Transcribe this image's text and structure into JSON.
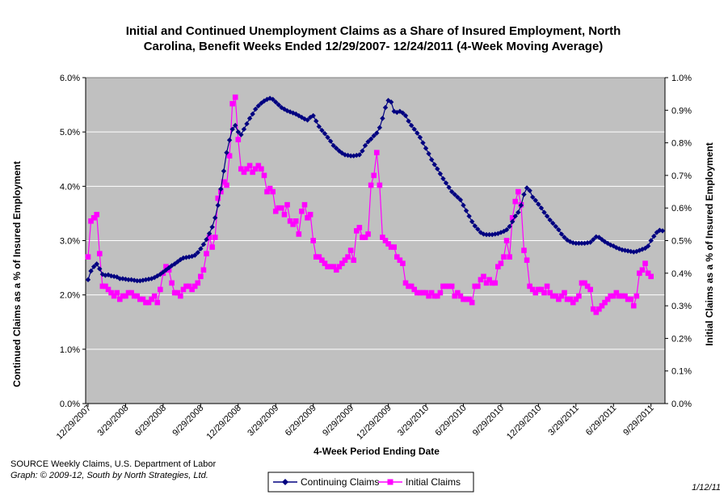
{
  "chart_data": {
    "type": "line",
    "title_line1": "Initial and Continued Unemployment Claims as a Share of Insured Employment, North",
    "title_line2": "Carolina, Benefit Weeks Ended 12/29/2007- 12/24/2011 (4-Week Moving Average)",
    "xlabel": "4-Week Period Ending Date",
    "ylabel_left": "Continued Claims as a % of Insured Employment",
    "ylabel_right": "Initial Claims as a % of Insured Employment",
    "ylim_left": [
      0,
      6.0
    ],
    "ylim_right": [
      0,
      1.0
    ],
    "y_ticks_left": [
      "0.0%",
      "1.0%",
      "2.0%",
      "3.0%",
      "4.0%",
      "5.0%",
      "6.0%"
    ],
    "y_ticks_right": [
      "0.0%",
      "0.1%",
      "0.2%",
      "0.3%",
      "0.4%",
      "0.5%",
      "0.6%",
      "0.7%",
      "0.8%",
      "0.9%",
      "1.0%"
    ],
    "x_tick_labels": [
      "12/29/2007",
      "3/29/2008",
      "6/29/2008",
      "9/29/2008",
      "12/29/2008",
      "3/29/2009",
      "6/29/2009",
      "9/29/2009",
      "12/29/2009",
      "3/29/2010",
      "6/29/2010",
      "9/29/2010",
      "12/29/2010",
      "3/29/2011",
      "6/29/2011",
      "9/29/2011"
    ],
    "grid": true,
    "legend_position": "bottom",
    "source_line": "SOURCE  Weekly Claims, U.S. Department of Labor",
    "credit_line": "Graph: © 2009-12, South by North Strategies, Ltd.",
    "date_stamp": "1/12/11",
    "colors": {
      "plot_bg": "#c0c0c0",
      "grid": "#ffffff",
      "continuing": "#000080",
      "initial": "#ff00ff"
    },
    "series": [
      {
        "name": "Continuing Claims",
        "axis": "left",
        "marker": "diamond",
        "values": [
          2.28,
          2.44,
          2.52,
          2.57,
          2.48,
          2.38,
          2.36,
          2.37,
          2.35,
          2.34,
          2.33,
          2.3,
          2.3,
          2.29,
          2.28,
          2.28,
          2.27,
          2.26,
          2.26,
          2.27,
          2.28,
          2.29,
          2.3,
          2.32,
          2.35,
          2.38,
          2.42,
          2.46,
          2.5,
          2.54,
          2.57,
          2.61,
          2.65,
          2.68,
          2.69,
          2.7,
          2.71,
          2.73,
          2.78,
          2.85,
          2.93,
          3.02,
          3.13,
          3.25,
          3.42,
          3.65,
          3.95,
          4.28,
          4.62,
          4.85,
          5.05,
          5.12,
          5.0,
          4.95,
          5.05,
          5.15,
          5.25,
          5.33,
          5.42,
          5.48,
          5.53,
          5.57,
          5.6,
          5.62,
          5.6,
          5.55,
          5.5,
          5.45,
          5.42,
          5.39,
          5.37,
          5.35,
          5.33,
          5.3,
          5.27,
          5.24,
          5.22,
          5.27,
          5.3,
          5.2,
          5.1,
          5.03,
          4.97,
          4.9,
          4.83,
          4.75,
          4.7,
          4.65,
          4.61,
          4.58,
          4.57,
          4.56,
          4.56,
          4.57,
          4.58,
          4.65,
          4.75,
          4.82,
          4.87,
          4.93,
          4.98,
          5.08,
          5.25,
          5.45,
          5.58,
          5.55,
          5.38,
          5.36,
          5.38,
          5.35,
          5.3,
          5.2,
          5.12,
          5.05,
          4.98,
          4.9,
          4.8,
          4.7,
          4.6,
          4.49,
          4.4,
          4.32,
          4.23,
          4.14,
          4.06,
          3.98,
          3.9,
          3.85,
          3.8,
          3.75,
          3.65,
          3.55,
          3.45,
          3.35,
          3.27,
          3.21,
          3.15,
          3.12,
          3.11,
          3.11,
          3.11,
          3.12,
          3.13,
          3.15,
          3.17,
          3.2,
          3.26,
          3.35,
          3.45,
          3.52,
          3.65,
          3.85,
          3.97,
          3.92,
          3.8,
          3.74,
          3.67,
          3.6,
          3.52,
          3.45,
          3.38,
          3.32,
          3.26,
          3.2,
          3.12,
          3.06,
          3.01,
          2.98,
          2.96,
          2.95,
          2.95,
          2.95,
          2.95,
          2.96,
          2.97,
          3.02,
          3.07,
          3.06,
          3.02,
          2.98,
          2.95,
          2.92,
          2.9,
          2.87,
          2.85,
          2.83,
          2.82,
          2.81,
          2.8,
          2.79,
          2.8,
          2.82,
          2.84,
          2.86,
          2.9,
          3.0,
          3.08,
          3.15,
          3.19,
          3.18
        ]
      },
      {
        "name": "Initial Claims",
        "axis": "right",
        "marker": "square",
        "values": [
          0.45,
          0.56,
          0.57,
          0.58,
          0.46,
          0.36,
          0.36,
          0.35,
          0.34,
          0.33,
          0.34,
          0.32,
          0.33,
          0.33,
          0.34,
          0.34,
          0.33,
          0.33,
          0.32,
          0.32,
          0.31,
          0.31,
          0.32,
          0.33,
          0.31,
          0.35,
          0.4,
          0.42,
          0.41,
          0.37,
          0.34,
          0.34,
          0.33,
          0.35,
          0.36,
          0.36,
          0.35,
          0.36,
          0.37,
          0.39,
          0.41,
          0.46,
          0.51,
          0.48,
          0.51,
          0.63,
          0.65,
          0.68,
          0.67,
          0.76,
          0.92,
          0.94,
          0.81,
          0.72,
          0.71,
          0.72,
          0.73,
          0.71,
          0.72,
          0.73,
          0.72,
          0.7,
          0.65,
          0.66,
          0.65,
          0.59,
          0.6,
          0.6,
          0.58,
          0.61,
          0.56,
          0.55,
          0.56,
          0.52,
          0.59,
          0.61,
          0.57,
          0.58,
          0.5,
          0.45,
          0.45,
          0.44,
          0.43,
          0.42,
          0.42,
          0.42,
          0.41,
          0.42,
          0.43,
          0.44,
          0.45,
          0.47,
          0.44,
          0.53,
          0.54,
          0.51,
          0.51,
          0.52,
          0.67,
          0.7,
          0.77,
          0.67,
          0.51,
          0.5,
          0.49,
          0.48,
          0.48,
          0.45,
          0.44,
          0.43,
          0.37,
          0.36,
          0.36,
          0.35,
          0.34,
          0.34,
          0.34,
          0.34,
          0.33,
          0.34,
          0.33,
          0.33,
          0.34,
          0.36,
          0.36,
          0.36,
          0.36,
          0.33,
          0.34,
          0.33,
          0.32,
          0.32,
          0.32,
          0.31,
          0.36,
          0.36,
          0.38,
          0.39,
          0.37,
          0.38,
          0.37,
          0.37,
          0.42,
          0.43,
          0.45,
          0.5,
          0.45,
          0.57,
          0.62,
          0.65,
          0.61,
          0.47,
          0.44,
          0.36,
          0.35,
          0.34,
          0.35,
          0.35,
          0.34,
          0.36,
          0.34,
          0.33,
          0.33,
          0.32,
          0.33,
          0.34,
          0.32,
          0.32,
          0.31,
          0.32,
          0.33,
          0.37,
          0.37,
          0.36,
          0.35,
          0.29,
          0.28,
          0.29,
          0.3,
          0.31,
          0.32,
          0.33,
          0.33,
          0.34,
          0.33,
          0.33,
          0.33,
          0.32,
          0.32,
          0.3,
          0.33,
          0.4,
          0.41,
          0.43,
          0.4,
          0.39
        ]
      }
    ]
  }
}
